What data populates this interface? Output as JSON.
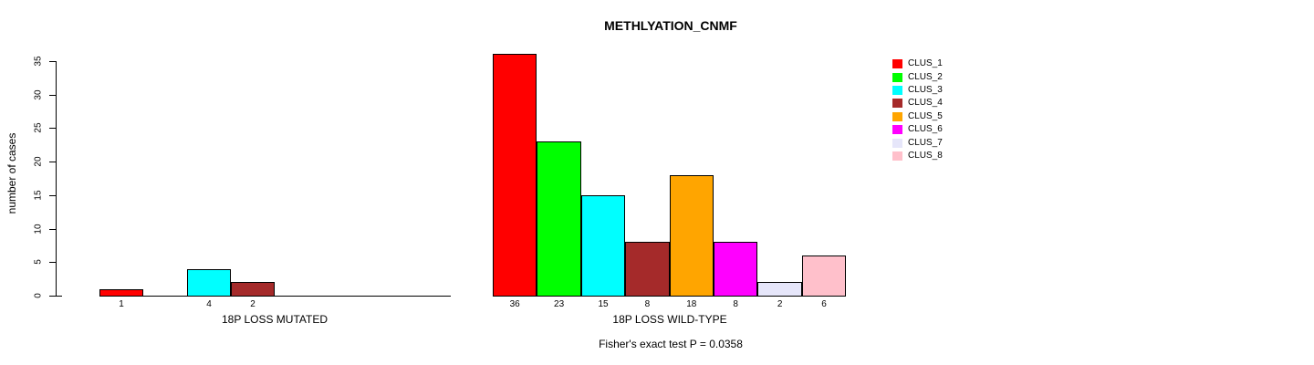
{
  "title": "METHLYATION_CNMF",
  "y_axis": {
    "label": "number of cases",
    "ticks": [
      0,
      5,
      10,
      15,
      20,
      25,
      30,
      35
    ]
  },
  "footer": "Fisher's exact test P = 0.0358",
  "legend": {
    "items": [
      {
        "label": "CLUS_1",
        "color": "#FF0000"
      },
      {
        "label": "CLUS_2",
        "color": "#00FF00"
      },
      {
        "label": "CLUS_3",
        "color": "#00FFFF"
      },
      {
        "label": "CLUS_4",
        "color": "#A52A2A"
      },
      {
        "label": "CLUS_5",
        "color": "#FFA500"
      },
      {
        "label": "CLUS_6",
        "color": "#FF00FF"
      },
      {
        "label": "CLUS_7",
        "color": "#E6E6FA"
      },
      {
        "label": "CLUS_8",
        "color": "#FFC0CB"
      }
    ]
  },
  "chart_data": {
    "type": "bar",
    "title": "METHLYATION_CNMF",
    "xlabel": "",
    "ylabel": "number of cases",
    "ylim": [
      0,
      35
    ],
    "yticks": [
      0,
      5,
      10,
      15,
      20,
      25,
      30,
      35
    ],
    "grid": false,
    "legend_position": "right",
    "categories": [
      "CLUS_1",
      "CLUS_2",
      "CLUS_3",
      "CLUS_4",
      "CLUS_5",
      "CLUS_6",
      "CLUS_7",
      "CLUS_8"
    ],
    "colors": [
      "#FF0000",
      "#00FF00",
      "#00FFFF",
      "#A52A2A",
      "#FFA500",
      "#FF00FF",
      "#E6E6FA",
      "#FFC0CB"
    ],
    "series": [
      {
        "name": "18P LOSS MUTATED",
        "values": [
          1,
          0,
          4,
          2,
          0,
          0,
          0,
          0
        ]
      },
      {
        "name": "18P LOSS WILD-TYPE",
        "values": [
          36,
          23,
          15,
          8,
          18,
          8,
          2,
          6
        ]
      }
    ],
    "bar_value_labels": [
      [
        "1",
        "4",
        "2"
      ],
      [
        "36",
        "23",
        "15",
        "8",
        "18",
        "8",
        "2",
        "6"
      ]
    ],
    "annotation": "Fisher's exact test P = 0.0358"
  }
}
